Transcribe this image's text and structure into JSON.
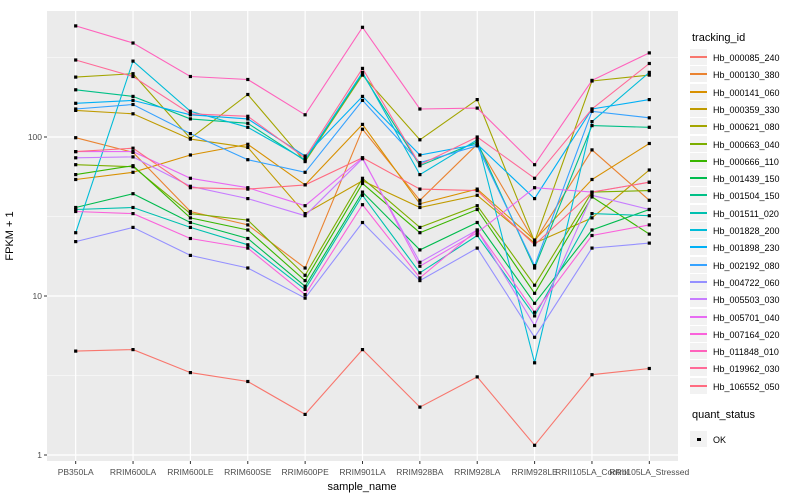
{
  "figure": {
    "background": "#FFFFFF",
    "panel_background": "#EBEBEB",
    "grid_color": "#FFFFFF",
    "tick_mark_color": "#333333",
    "tick_label_color": "#4D4D4D",
    "marker_color": "#000000"
  },
  "chart_data": {
    "type": "line",
    "title": "",
    "xlabel": "sample_name",
    "ylabel": "FPKM + 1",
    "y_scale": "log10",
    "y_ticks": [
      1,
      10,
      100
    ],
    "y_minor_ticks": [
      3.162,
      31.62,
      316.2
    ],
    "ylim": [
      1,
      620
    ],
    "grid": true,
    "legend_position": "right",
    "categories": [
      "PB350LA",
      "RRIM600LA",
      "RRIM600LE",
      "RRIM600SE",
      "RRIM600PE",
      "RRIM901LA",
      "RRIM928BA",
      "RRIM928LA",
      "RRIM928LE",
      "RRII105LA_Control",
      "RRII105LA_Stressed"
    ],
    "series": [
      {
        "name": "Hb_000085_240",
        "color": "#F8766D",
        "values": [
          4.5,
          4.6,
          3.3,
          2.9,
          1.8,
          4.6,
          2.0,
          3.1,
          1.15,
          3.2,
          3.5
        ]
      },
      {
        "name": "Hb_000130_380",
        "color": "#EA8331",
        "values": [
          99,
          80,
          34,
          28,
          15,
          112,
          40,
          90,
          22,
          83,
          40
        ]
      },
      {
        "name": "Hb_000141_060",
        "color": "#D89000",
        "values": [
          54,
          60,
          77,
          90,
          50,
          120,
          38,
          47,
          22.5,
          54,
          91
        ]
      },
      {
        "name": "Hb_000359_330",
        "color": "#C09B00",
        "values": [
          147,
          140,
          97,
          86,
          33,
          53,
          36,
          43,
          21.5,
          31,
          62
        ]
      },
      {
        "name": "Hb_000621_080",
        "color": "#A3A500",
        "values": [
          238,
          250,
          98,
          185,
          70,
          245,
          96,
          172,
          22,
          225,
          245
        ]
      },
      {
        "name": "Hb_000663_040",
        "color": "#7CAE00",
        "values": [
          67,
          65,
          33,
          30,
          13.5,
          55,
          27,
          37,
          11.7,
          45,
          46
        ]
      },
      {
        "name": "Hb_000666_110",
        "color": "#39B600",
        "values": [
          58,
          66,
          31,
          26,
          12.5,
          51,
          25,
          35,
          10.4,
          42,
          24.5
        ]
      },
      {
        "name": "Hb_001439_150",
        "color": "#00BB4E",
        "values": [
          36,
          44,
          29,
          23,
          11.5,
          45,
          19.5,
          29,
          9.0,
          26,
          35
        ]
      },
      {
        "name": "Hb_001504_150",
        "color": "#00C087",
        "values": [
          198,
          180,
          130,
          122,
          71,
          250,
          66,
          93,
          15,
          118,
          115
        ]
      },
      {
        "name": "Hb_001511_020",
        "color": "#00C0AF",
        "values": [
          35,
          36,
          27,
          21,
          11,
          43,
          14,
          24,
          7.5,
          33,
          32
        ]
      },
      {
        "name": "Hb_001828_200",
        "color": "#00BCD8",
        "values": [
          25,
          300,
          145,
          115,
          72,
          255,
          58,
          96,
          3.8,
          125,
          255
        ]
      },
      {
        "name": "Hb_001898_230",
        "color": "#00B0F6",
        "values": [
          163,
          170,
          138,
          130,
          76,
          180,
          77,
          90,
          41,
          150,
          172
        ]
      },
      {
        "name": "Hb_002192_080",
        "color": "#35A2FF",
        "values": [
          150,
          160,
          105,
          72,
          60,
          170,
          69,
          88,
          15.5,
          145,
          132
        ]
      },
      {
        "name": "Hb_004722_060",
        "color": "#9590FF",
        "values": [
          22,
          27,
          18,
          15,
          9.7,
          29,
          12.5,
          20,
          5.5,
          20,
          21.5
        ]
      },
      {
        "name": "Hb_005503_030",
        "color": "#C77CFF",
        "values": [
          74,
          75,
          49,
          41,
          32,
          73,
          16.3,
          26,
          6.5,
          43,
          35
        ]
      },
      {
        "name": "Hb_005701_040",
        "color": "#E76BF3",
        "values": [
          81,
          81,
          55,
          48,
          37,
          74,
          15.4,
          25,
          48,
          45,
          52
        ]
      },
      {
        "name": "Hb_007164_020",
        "color": "#FA62DB",
        "values": [
          34,
          33,
          23,
          20,
          10.2,
          37.5,
          13,
          26,
          7.9,
          24,
          28
        ]
      },
      {
        "name": "Hb_011848_010",
        "color": "#FF62BC",
        "values": [
          500,
          390,
          240,
          230,
          138,
          490,
          150,
          152,
          67,
          227,
          338
        ]
      },
      {
        "name": "Hb_019962_030",
        "color": "#FF6A98",
        "values": [
          305,
          240,
          140,
          135,
          74,
          270,
          67,
          100,
          55,
          150,
          290
        ]
      },
      {
        "name": "Hb_106552_050",
        "color": "#FF6B80",
        "values": [
          81,
          85,
          48,
          47,
          50,
          74,
          47,
          46,
          21,
          45,
          52
        ]
      }
    ],
    "legend": {
      "color_title": "tracking_id",
      "shape_title": "quant_status",
      "shape_entries": [
        {
          "label": "OK",
          "marker": "black-square"
        }
      ]
    },
    "marker": {
      "shape": "square",
      "color": "#000000",
      "size": 3
    }
  }
}
